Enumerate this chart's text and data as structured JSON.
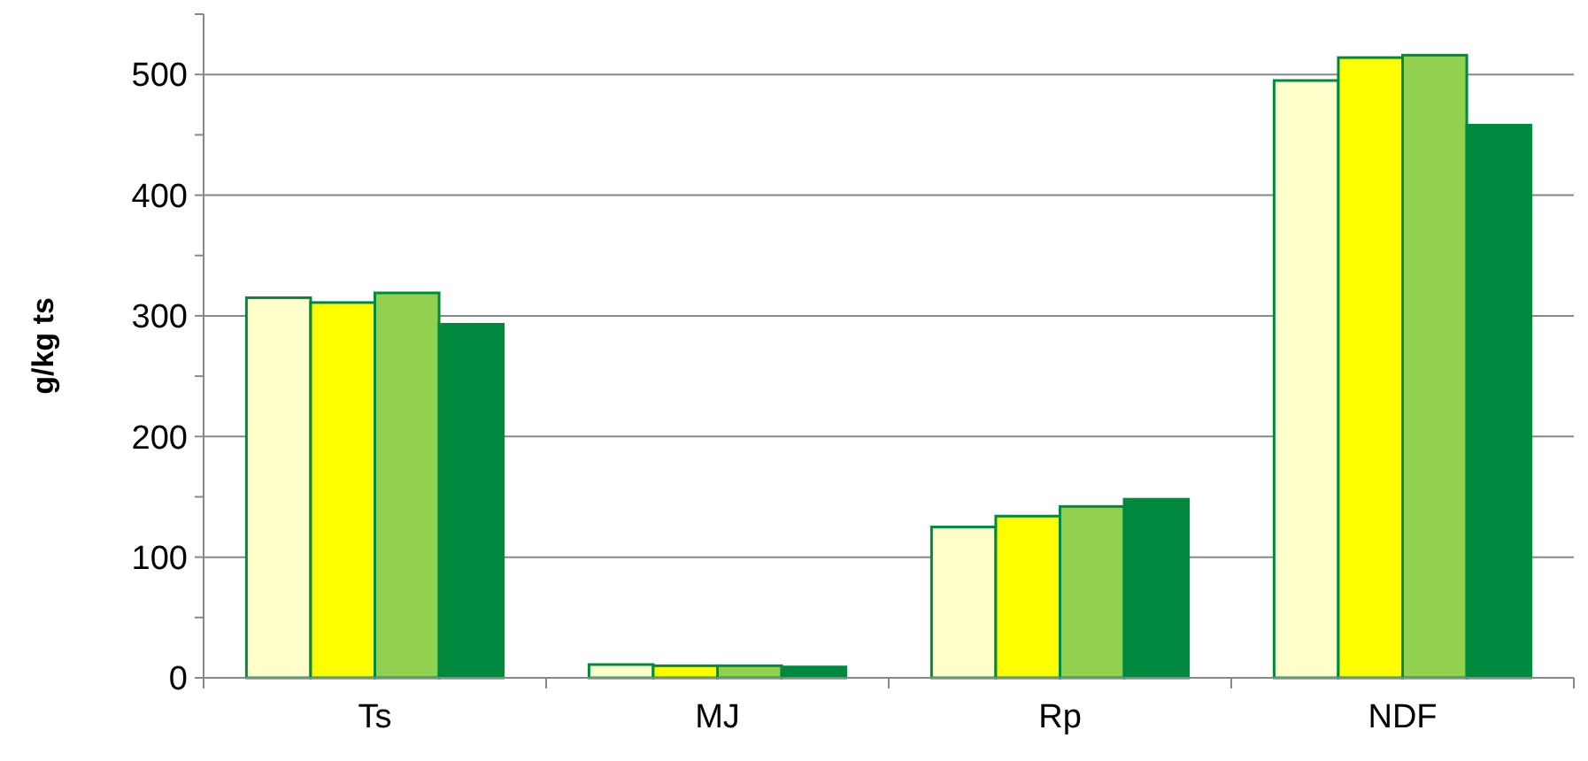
{
  "chart_data": {
    "type": "bar",
    "ylabel": "g/kg ts",
    "categories": [
      "Ts",
      "MJ",
      "Rp",
      "NDF"
    ],
    "series": [
      {
        "color": "#ffffcc",
        "values": [
          315,
          11,
          125,
          495
        ]
      },
      {
        "color": "#ffff00",
        "values": [
          311,
          10,
          134,
          514
        ]
      },
      {
        "color": "#92d050",
        "values": [
          319,
          10,
          142,
          516
        ]
      },
      {
        "color": "#00883e",
        "values": [
          293,
          9,
          148,
          458
        ]
      }
    ],
    "ylim": [
      0,
      550
    ],
    "yticks": [
      0,
      {
        "value": 50,
        "label": null
      },
      100,
      {
        "value": 150,
        "label": null
      },
      200,
      {
        "value": 250,
        "label": null
      },
      300,
      {
        "value": 350,
        "label": null
      },
      400,
      {
        "value": 450,
        "label": null
      },
      500,
      {
        "value": 550,
        "label": null
      }
    ],
    "grid": "y"
  }
}
